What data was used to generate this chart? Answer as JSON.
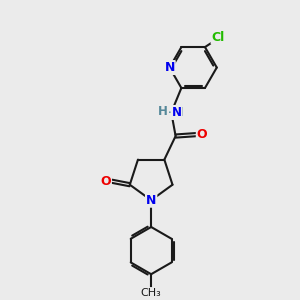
{
  "background_color": "#ebebeb",
  "bond_color": "#1a1a1a",
  "bond_width": 1.5,
  "atom_colors": {
    "N": "#0000ee",
    "O": "#ee0000",
    "Cl": "#22bb00",
    "H": "#558899",
    "C": "#1a1a1a"
  },
  "figsize": [
    3.0,
    3.0
  ],
  "dpi": 100
}
